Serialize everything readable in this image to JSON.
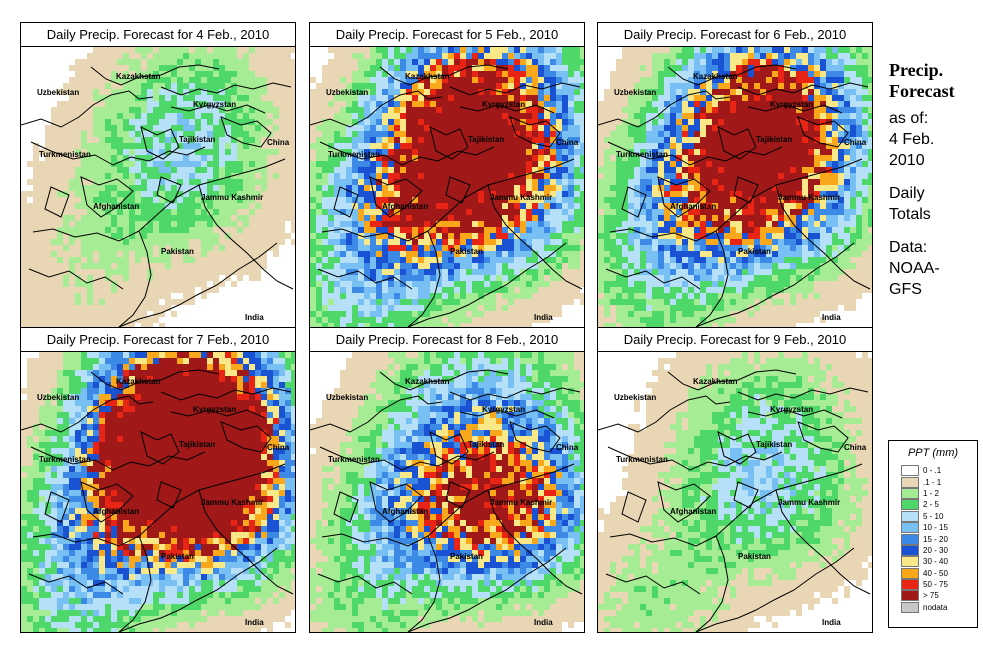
{
  "panels": [
    {
      "title": "Daily Precip. Forecast for  4 Feb., 2010",
      "profile": [
        1,
        1,
        1,
        1,
        1,
        1,
        1,
        1
      ]
    },
    {
      "title": "Daily Precip. Forecast for  5 Feb., 2010",
      "profile": [
        4,
        4,
        5,
        4,
        5,
        5,
        3,
        3
      ]
    },
    {
      "title": "Daily Precip. Forecast for  6 Feb., 2010",
      "profile": [
        3,
        3,
        4,
        4,
        4,
        4,
        2,
        5
      ]
    },
    {
      "title": "Daily Precip. Forecast for  7 Feb., 2010",
      "profile": [
        5,
        4,
        4,
        4,
        4,
        8,
        3,
        9
      ]
    },
    {
      "title": "Daily Precip. Forecast for  8 Feb., 2010",
      "profile": [
        2,
        2,
        0,
        4,
        2,
        9,
        2,
        1
      ]
    },
    {
      "title": "Daily Precip. Forecast for  9 Feb., 2010",
      "profile": [
        1,
        1,
        0,
        2,
        0,
        2,
        2,
        1
      ]
    }
  ],
  "place_labels": {
    "uzbekistan": "Uzbekistan",
    "kazakhstan": "Kazakhstan",
    "kyrgyzstan": "Kyrgyzstan",
    "tajikistan": "Tajikistan",
    "china": "China",
    "turkmenistan": "Turkmenistan",
    "afghanistan": "Afghanistan",
    "jammu_kashmir": "Jammu Kashmir",
    "pakistan": "Pakistan",
    "india": "India"
  },
  "side": {
    "title_line1": "Precip.",
    "title_line2": "Forecast",
    "asof": "as of:",
    "date_line1": "4 Feb.",
    "date_line2": "2010",
    "daily_line1": "Daily",
    "daily_line2": "Totals",
    "data_line1": "Data:",
    "data_line2": "NOAA-",
    "data_line3": "GFS"
  },
  "legend": {
    "title": "PPT (mm)",
    "items": [
      {
        "label": "0 - .1",
        "color": "#ffffff"
      },
      {
        "label": ".1 - 1",
        "color": "#e8d6b4"
      },
      {
        "label": "1 - 2",
        "color": "#a6ec94"
      },
      {
        "label": "2 - 5",
        "color": "#4fd86a"
      },
      {
        "label": "5 - 10",
        "color": "#b6e0f8"
      },
      {
        "label": "10 - 15",
        "color": "#78c0f4"
      },
      {
        "label": "15 - 20",
        "color": "#3c8ae6"
      },
      {
        "label": "20 - 30",
        "color": "#1a52d4"
      },
      {
        "label": "30 - 40",
        "color": "#f8e888"
      },
      {
        "label": "40 - 50",
        "color": "#f8a81a"
      },
      {
        "label": "50 - 75",
        "color": "#e82414"
      },
      {
        "label": "> 75",
        "color": "#a01818"
      },
      {
        "label": "nodata",
        "color": "#c8c8c8"
      }
    ]
  }
}
